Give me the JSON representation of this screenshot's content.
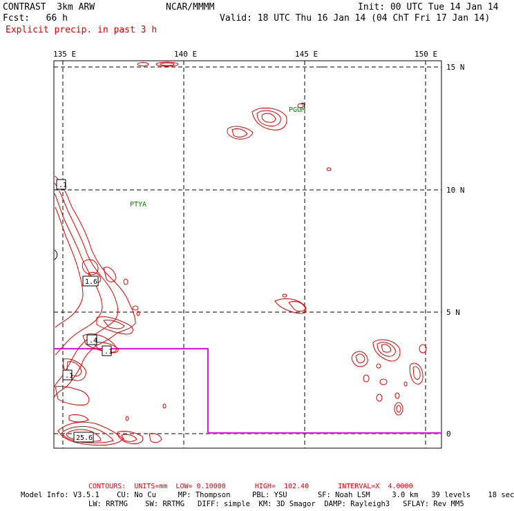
{
  "header": {
    "model": "CONTRAST  3km ARW",
    "org": "NCAR/MMMM",
    "init": "Init: 00 UTC Tue 14 Jan 14",
    "fcst": "Fcst:   66 h",
    "valid": "Valid: 18 UTC Thu 16 Jan 14 (04 ChT Fri 17 Jan 14)",
    "field": "Explicit precip. in past 3 h"
  },
  "map": {
    "lon_labels": [
      "135 E",
      "140 E",
      "145 E",
      "150 E"
    ],
    "lat_labels": [
      "15 N",
      "10 N",
      "5 N",
      "0"
    ],
    "stations": [
      "PGUM",
      "PTYA"
    ],
    "contour_labels": [
      ".1",
      "1.6",
      ".4",
      ".1",
      ".1",
      "25.6"
    ],
    "colors": {
      "contour": "#e00000",
      "boundary": "#ff00ff",
      "grid": "#000000",
      "station": "#0a7a0a"
    }
  },
  "footer": {
    "contours": "CONTOURS:  UNITS=mm  LOW= 0.10000       HIGH=  102.40       INTERVAL=X  4.0000",
    "model_info_1": "Model Info: V3.5.1    CU: No Cu     MP: Thompson     PBL: YSU       SF: Noah LSM     3.0 km   39 levels    18 sec",
    "model_info_2": "LW: RRTMG    SW: RRTMG   DIFF: simple  KM: 3D Smagor  DAMP: Rayleigh3   SFLAY: Rev MM5"
  }
}
